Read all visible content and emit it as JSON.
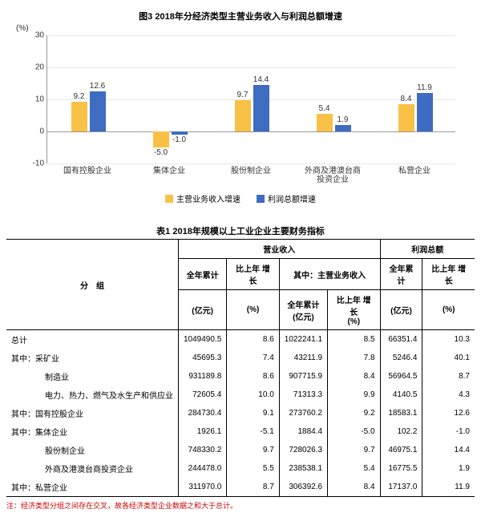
{
  "chart": {
    "type": "bar",
    "title": "图3 2018年分经济类型主营业务收入与利润总额增速",
    "y_unit": "(%)",
    "ylim": [
      -10,
      30
    ],
    "yticks": [
      -10,
      0,
      10,
      20,
      30
    ],
    "categories": [
      "国有控股企业",
      "集体企业",
      "股份制企业",
      "外商及港澳台商\n投资企业",
      "私营企业"
    ],
    "series": [
      {
        "name": "主营业务收入增速",
        "color": "#f8c146",
        "values": [
          9.2,
          -5.0,
          9.7,
          5.4,
          8.4
        ]
      },
      {
        "name": "利润总额增速",
        "color": "#3d6cc0",
        "values": [
          12.6,
          -1.0,
          14.4,
          1.9,
          11.9
        ]
      }
    ],
    "grid_color": "#e8e8e8",
    "axis_color": "#999999",
    "bg": "#ffffff"
  },
  "table": {
    "title": "表1 2018年规模以上工业企业主要财务指标",
    "group_label": "分　组",
    "col_groups": {
      "g1": "营业收入",
      "g1sub": "其中：主营业务收入",
      "g2": "利润总额"
    },
    "sub_headers": {
      "acc": "全年累计",
      "yoy": "比上年\n增长"
    },
    "units": {
      "yiyuan": "(亿元)",
      "pct": "(%)"
    },
    "rows": [
      {
        "label": "总计",
        "indent": 0,
        "v": [
          "1049490.5",
          "8.6",
          "1022241.1",
          "8.5",
          "66351.4",
          "10.3"
        ]
      },
      {
        "label": "其中：采矿业",
        "indent": 0,
        "v": [
          "45695.3",
          "7.4",
          "43211.9",
          "7.8",
          "5246.4",
          "40.1"
        ]
      },
      {
        "label": "制造业",
        "indent": 2,
        "v": [
          "931189.8",
          "8.6",
          "907715.9",
          "8.4",
          "56964.5",
          "8.7"
        ]
      },
      {
        "label": "电力、热力、燃气及水生产和供应业",
        "indent": 2,
        "v": [
          "72605.4",
          "10.0",
          "71313.3",
          "9.9",
          "4140.5",
          "4.3"
        ]
      },
      {
        "label": "其中：国有控股企业",
        "indent": 0,
        "v": [
          "284730.4",
          "9.1",
          "273760.2",
          "9.2",
          "18583.1",
          "12.6"
        ]
      },
      {
        "label": "其中：集体企业",
        "indent": 0,
        "v": [
          "1926.1",
          "-5.1",
          "1884.4",
          "-5.0",
          "102.2",
          "-1.0"
        ]
      },
      {
        "label": "股份制企业",
        "indent": 2,
        "v": [
          "748330.2",
          "9.7",
          "728026.3",
          "9.7",
          "46975.1",
          "14.4"
        ]
      },
      {
        "label": "外商及港澳台商投资企业",
        "indent": 2,
        "v": [
          "244478.0",
          "5.5",
          "238538.1",
          "5.4",
          "16775.5",
          "1.9"
        ]
      },
      {
        "label": "其中：私营企业",
        "indent": 0,
        "v": [
          "311970.0",
          "8.7",
          "306392.6",
          "8.4",
          "17137.0",
          "11.9"
        ]
      }
    ],
    "footnote": "注：经济类型分组之间存在交叉，故各经济类型企业数据之和大于总计。"
  }
}
